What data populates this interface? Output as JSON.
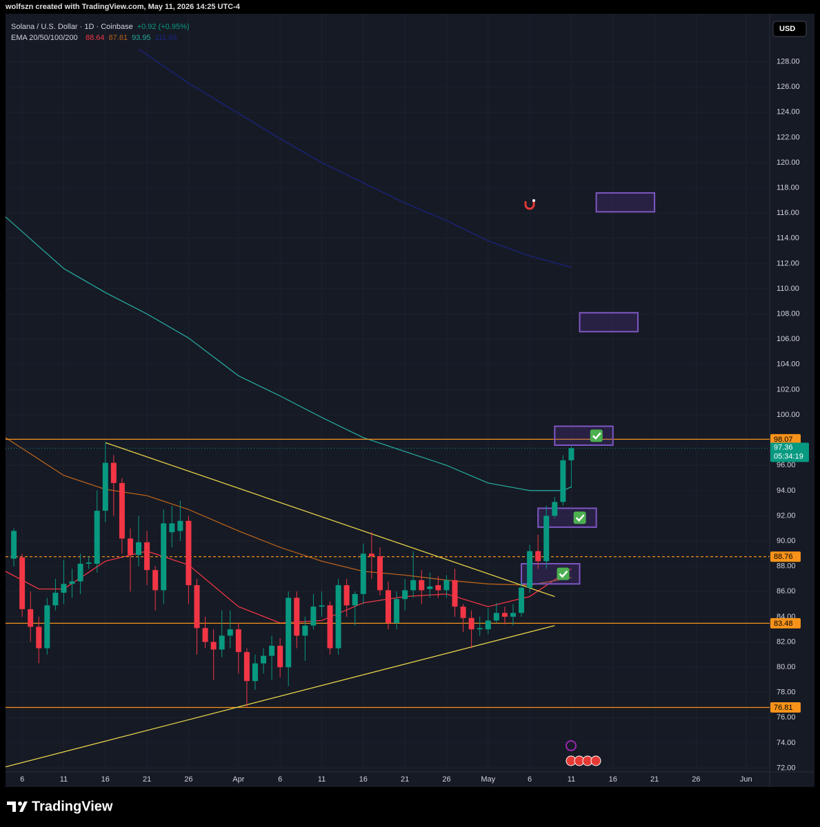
{
  "chart_data": {
    "type": "candlestick",
    "credit": "wolfszn created with TradingView.com, May 11, 2026 14:25 UTC-4",
    "title": "Solana / U.S. Dollar · 1D · Coinbase",
    "change": "+0.92 (+0.95%)",
    "currency": "USD",
    "brand": "TradingView",
    "up_color": "#089981",
    "down_color": "#f23645",
    "categories": [
      "2026-03-05",
      "2026-03-06",
      "2026-03-07",
      "2026-03-08",
      "2026-03-09",
      "2026-03-10",
      "2026-03-11",
      "2026-03-12",
      "2026-03-13",
      "2026-03-14",
      "2026-03-15",
      "2026-03-16",
      "2026-03-17",
      "2026-03-18",
      "2026-03-19",
      "2026-03-20",
      "2026-03-21",
      "2026-03-22",
      "2026-03-23",
      "2026-03-24",
      "2026-03-25",
      "2026-03-26",
      "2026-03-27",
      "2026-03-28",
      "2026-03-29",
      "2026-03-30",
      "2026-03-31",
      "2026-04-01",
      "2026-04-02",
      "2026-04-03",
      "2026-04-04",
      "2026-04-05",
      "2026-04-06",
      "2026-04-07",
      "2026-04-08",
      "2026-04-09",
      "2026-04-10",
      "2026-04-11",
      "2026-04-12",
      "2026-04-13",
      "2026-04-14",
      "2026-04-15",
      "2026-04-16",
      "2026-04-17",
      "2026-04-18",
      "2026-04-19",
      "2026-04-20",
      "2026-04-21",
      "2026-04-22",
      "2026-04-23",
      "2026-04-24",
      "2026-04-25",
      "2026-04-26",
      "2026-04-27",
      "2026-04-28",
      "2026-04-29",
      "2026-04-30",
      "2026-05-01",
      "2026-05-02",
      "2026-05-03",
      "2026-05-04",
      "2026-05-05",
      "2026-05-06",
      "2026-05-07",
      "2026-05-08",
      "2026-05-09",
      "2026-05-10",
      "2026-05-11"
    ],
    "open": [
      88.6,
      88.7,
      84.6,
      83.2,
      81.5,
      84.9,
      85.9,
      86.6,
      86.8,
      88.2,
      88.2,
      92.4,
      96.2,
      94.6,
      90.2,
      88.9,
      89.9,
      87.7,
      86.1,
      90.7,
      90.8,
      91.6,
      86.5,
      83.1,
      82,
      81.4,
      82.5,
      83,
      81.2,
      78.9,
      80.3,
      80.9,
      81.7,
      80,
      85.5,
      82.5,
      83.3,
      84.8,
      84.9,
      81.5,
      86.5,
      84.9,
      85.8,
      89,
      88.8,
      86.1,
      83.5,
      85.4,
      86.1,
      86.9,
      86.2,
      86.5,
      86.1,
      86.9,
      84.8,
      83.9,
      83,
      83,
      83.7,
      84.3,
      84,
      84.3,
      86.3,
      89.2,
      88.4,
      92,
      93.1,
      96.4
    ],
    "high": [
      91,
      89,
      86,
      84,
      85.5,
      87,
      88.5,
      87.8,
      89,
      88.8,
      94,
      97.8,
      96.8,
      95,
      91,
      92,
      90.8,
      88,
      92.5,
      92.8,
      93.2,
      92,
      87,
      84,
      83,
      84.5,
      84.5,
      83.5,
      81.5,
      81,
      81.5,
      82.5,
      82.3,
      86,
      86,
      84,
      85.8,
      86,
      85.2,
      87,
      87,
      86,
      89.8,
      90.7,
      89.5,
      86.8,
      86,
      87,
      89.2,
      87.7,
      87.5,
      87.2,
      87.3,
      87.8,
      85,
      84.5,
      84,
      84.7,
      85.1,
      84.8,
      85,
      86.8,
      89.7,
      90.5,
      92.8,
      93.5,
      96.8,
      97.5
    ],
    "low": [
      88,
      84,
      82,
      80.3,
      81,
      84.5,
      85,
      85.5,
      85.8,
      87.8,
      87.5,
      91.5,
      92,
      89,
      86,
      88,
      86.5,
      84.5,
      85,
      89.5,
      90,
      85,
      81,
      81.5,
      79,
      80.8,
      81.5,
      79.5,
      76.8,
      78.2,
      79.5,
      79,
      79.2,
      78.5,
      81.5,
      80.5,
      83,
      84,
      81,
      81,
      84,
      83.3,
      85,
      87,
      85.7,
      83,
      83,
      84.5,
      85.5,
      85,
      85.5,
      85.5,
      85.5,
      84,
      82.8,
      81.5,
      82.5,
      82.6,
      83.5,
      83.4,
      83.3,
      84,
      85.9,
      87.8,
      87.8,
      91.8,
      92.8,
      94.2
    ],
    "close": [
      90.8,
      84.6,
      83.2,
      81.5,
      84.9,
      85.9,
      86.6,
      86.8,
      88.2,
      88.3,
      92.4,
      96.2,
      94.6,
      90.2,
      88.9,
      89.9,
      87.7,
      86.1,
      91.4,
      91.4,
      91.6,
      86.5,
      83.1,
      82,
      81.4,
      82.5,
      83,
      81.2,
      78.9,
      80.3,
      80.9,
      81.7,
      80,
      85.5,
      82.5,
      83.3,
      84.8,
      84.9,
      81.5,
      86.5,
      84.9,
      85.8,
      89,
      88.8,
      86.1,
      83.5,
      85.4,
      86.1,
      86.9,
      86.1,
      86.4,
      86.1,
      86.9,
      84.8,
      83.9,
      83,
      83.1,
      83.7,
      84.3,
      84,
      84.3,
      86.3,
      89.2,
      88.4,
      92,
      93.1,
      96.4,
      97.36
    ],
    "xlim": [
      "2026-03-04",
      "2026-06-04"
    ],
    "xticks": [
      {
        "value": "2026-03-06",
        "label": "6"
      },
      {
        "value": "2026-03-11",
        "label": "11"
      },
      {
        "value": "2026-03-16",
        "label": "16"
      },
      {
        "value": "2026-03-21",
        "label": "21"
      },
      {
        "value": "2026-03-26",
        "label": "26"
      },
      {
        "value": "2026-04-01",
        "label": "Apr"
      },
      {
        "value": "2026-04-06",
        "label": "6"
      },
      {
        "value": "2026-04-11",
        "label": "11"
      },
      {
        "value": "2026-04-16",
        "label": "16"
      },
      {
        "value": "2026-04-21",
        "label": "21"
      },
      {
        "value": "2026-04-26",
        "label": "26"
      },
      {
        "value": "2026-05-01",
        "label": "May"
      },
      {
        "value": "2026-05-06",
        "label": "6"
      },
      {
        "value": "2026-05-11",
        "label": "11"
      },
      {
        "value": "2026-05-16",
        "label": "16"
      },
      {
        "value": "2026-05-21",
        "label": "21"
      },
      {
        "value": "2026-05-26",
        "label": "26"
      },
      {
        "value": "2026-06-01",
        "label": "Jun"
      }
    ],
    "ylim": [
      71.7,
      131.8
    ],
    "yticks": [
      {
        "value": 72,
        "label": "72.00"
      },
      {
        "value": 74,
        "label": "74.00"
      },
      {
        "value": 76,
        "label": "76.00"
      },
      {
        "value": 78,
        "label": "78.00"
      },
      {
        "value": 80,
        "label": "80.00"
      },
      {
        "value": 82,
        "label": "82.00"
      },
      {
        "value": 84,
        "label": "84.00"
      },
      {
        "value": 86,
        "label": "86.00"
      },
      {
        "value": 88,
        "label": "88.00"
      },
      {
        "value": 90,
        "label": "90.00"
      },
      {
        "value": 92,
        "label": "92.00"
      },
      {
        "value": 94,
        "label": "94.00"
      },
      {
        "value": 96,
        "label": "96.00"
      },
      {
        "value": 98,
        "label": "98.00"
      },
      {
        "value": 100,
        "label": "100.00"
      },
      {
        "value": 102,
        "label": "102.00"
      },
      {
        "value": 104,
        "label": "104.00"
      },
      {
        "value": 106,
        "label": "106.00"
      },
      {
        "value": 108,
        "label": "108.00"
      },
      {
        "value": 110,
        "label": "110.00"
      },
      {
        "value": 112,
        "label": "112.00"
      },
      {
        "value": 114,
        "label": "114.00"
      },
      {
        "value": 116,
        "label": "116.00"
      },
      {
        "value": 118,
        "label": "118.00"
      },
      {
        "value": 120,
        "label": "120.00"
      },
      {
        "value": 122,
        "label": "122.00"
      },
      {
        "value": 124,
        "label": "124.00"
      },
      {
        "value": 126,
        "label": "126.00"
      },
      {
        "value": 128,
        "label": "128.00"
      }
    ],
    "grid": true,
    "indicator": {
      "label": "EMA 20/50/100/200",
      "lines": [
        {
          "value_label": "88.64",
          "color": "#f23645",
          "x": [
            "2026-03-04",
            "2026-03-08",
            "2026-03-11",
            "2026-03-16",
            "2026-03-21",
            "2026-03-26",
            "2026-04-01",
            "2026-04-06",
            "2026-04-11",
            "2026-04-16",
            "2026-04-21",
            "2026-04-26",
            "2026-05-01",
            "2026-05-06",
            "2026-05-11"
          ],
          "values": [
            87.6,
            86.2,
            86.2,
            88.4,
            89.2,
            88.1,
            84.8,
            83.5,
            83.7,
            85.1,
            85.6,
            85.8,
            84.8,
            85.6,
            87.8
          ]
        },
        {
          "value_label": "87.61",
          "color": "#b8621b",
          "x": [
            "2026-03-04",
            "2026-03-11",
            "2026-03-16",
            "2026-03-21",
            "2026-03-26",
            "2026-04-01",
            "2026-04-06",
            "2026-04-11",
            "2026-04-16",
            "2026-04-21",
            "2026-04-26",
            "2026-05-01",
            "2026-05-06",
            "2026-05-11"
          ],
          "values": [
            98.2,
            95.2,
            94.1,
            93.6,
            92.5,
            90.8,
            89.5,
            88.4,
            87.6,
            87.3,
            86.9,
            86.6,
            86.5,
            87.1
          ]
        },
        {
          "value_label": "93.95",
          "color": "#26a69a",
          "x": [
            "2026-03-04",
            "2026-03-11",
            "2026-03-16",
            "2026-03-21",
            "2026-03-26",
            "2026-04-01",
            "2026-04-06",
            "2026-04-11",
            "2026-04-16",
            "2026-04-21",
            "2026-04-26",
            "2026-05-01",
            "2026-05-06",
            "2026-05-10",
            "2026-05-11"
          ],
          "values": [
            115.7,
            111.6,
            109.7,
            108,
            106.1,
            103.1,
            101.5,
            99.8,
            98.2,
            97.1,
            96,
            94.6,
            94,
            94,
            94.3
          ]
        },
        {
          "value_label": "111.66",
          "color": "#1a237e",
          "x": [
            "2026-03-20",
            "2026-03-26",
            "2026-04-01",
            "2026-04-06",
            "2026-04-11",
            "2026-04-16",
            "2026-04-21",
            "2026-04-26",
            "2026-05-01",
            "2026-05-06",
            "2026-05-11"
          ],
          "values": [
            129,
            126.3,
            123.9,
            121.9,
            120,
            118.4,
            116.8,
            115.4,
            113.8,
            112.6,
            111.7
          ]
        }
      ]
    },
    "levels": [
      {
        "value": 98.07,
        "color": "#f7931a",
        "style": "solid"
      },
      {
        "value": 88.76,
        "color": "#f7931a",
        "style": "dashed"
      },
      {
        "value": 83.48,
        "color": "#f7931a",
        "style": "solid"
      },
      {
        "value": 76.81,
        "color": "#f7931a",
        "style": "solid"
      }
    ],
    "last_price": {
      "value": 97.36,
      "countdown": "05:34:19",
      "color": "#089981"
    },
    "trendlines": [
      {
        "x": [
          "2026-03-16",
          "2026-05-09"
        ],
        "values": [
          97.8,
          85.6
        ],
        "color": "#e6d34a"
      },
      {
        "x": [
          "2026-03-04",
          "2026-05-09"
        ],
        "values": [
          72.1,
          83.3
        ],
        "color": "#e6d34a"
      }
    ],
    "zones": [
      {
        "x": [
          "2026-05-14",
          "2026-05-21"
        ],
        "values": [
          117.6,
          116.1
        ],
        "check": false
      },
      {
        "x": [
          "2026-05-12",
          "2026-05-19"
        ],
        "values": [
          108.1,
          106.6
        ],
        "check": false
      },
      {
        "x": [
          "2026-05-09",
          "2026-05-16"
        ],
        "values": [
          99.1,
          97.6
        ],
        "check": true
      },
      {
        "x": [
          "2026-05-07",
          "2026-05-14"
        ],
        "values": [
          92.6,
          91.1
        ],
        "check": true
      },
      {
        "x": [
          "2026-05-05",
          "2026-05-12"
        ],
        "values": [
          88.2,
          86.6
        ],
        "check": true
      }
    ]
  }
}
